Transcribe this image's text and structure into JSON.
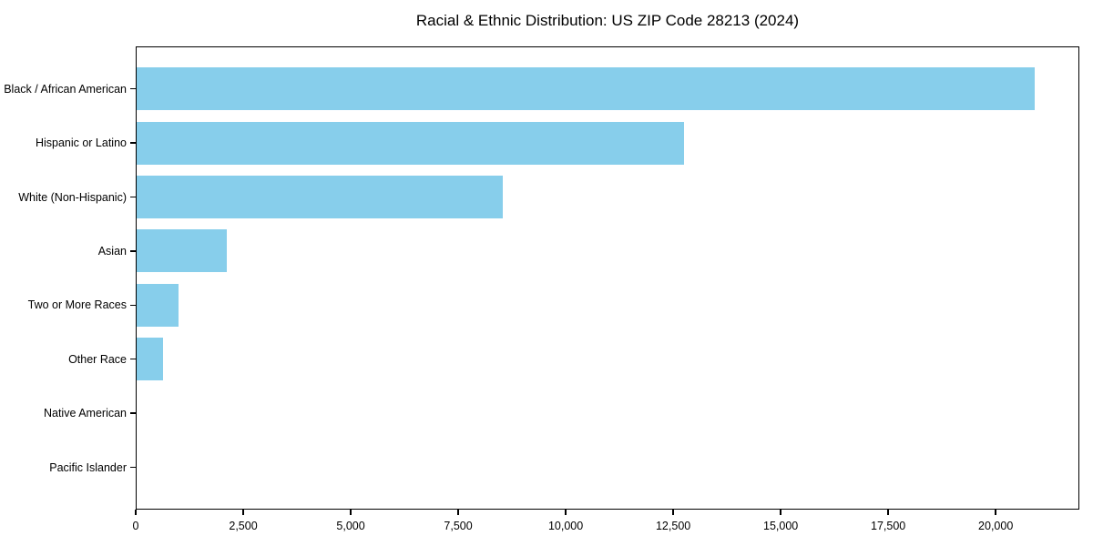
{
  "title": "Racial & Ethnic Distribution: US ZIP Code 28213 (2024)",
  "colors": {
    "bar": "#87CEEB",
    "axis": "#000000",
    "text": "#000000",
    "background": "#ffffff"
  },
  "chart_data": {
    "type": "bar",
    "orientation": "horizontal",
    "title": "Racial & Ethnic Distribution: US ZIP Code 28213 (2024)",
    "categories": [
      "Black / African American",
      "Hispanic or Latino",
      "White (Non-Hispanic)",
      "Asian",
      "Two or More Races",
      "Other Race",
      "Native American",
      "Pacific Islander"
    ],
    "values": [
      20900,
      12750,
      8530,
      2120,
      1000,
      640,
      0,
      0
    ],
    "xlabel": "",
    "ylabel": "",
    "xlim": [
      0,
      21945
    ],
    "xticks": [
      {
        "value": 0,
        "label": "0"
      },
      {
        "value": 2500,
        "label": "2,500"
      },
      {
        "value": 5000,
        "label": "5,000"
      },
      {
        "value": 7500,
        "label": "7,500"
      },
      {
        "value": 10000,
        "label": "10,000"
      },
      {
        "value": 12500,
        "label": "12,500"
      },
      {
        "value": 15000,
        "label": "15,000"
      },
      {
        "value": 17500,
        "label": "17,500"
      },
      {
        "value": 20000,
        "label": "20,000"
      }
    ],
    "grid": false,
    "legend": null,
    "bar_color": "#87CEEB"
  }
}
